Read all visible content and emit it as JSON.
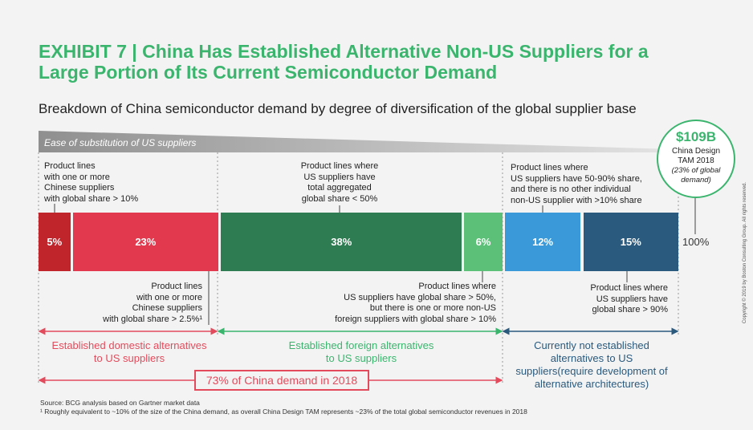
{
  "header": {
    "title": "EXHIBIT 7 | China Has Established Alternative Non-US Suppliers for a Large Portion of Its Current Semiconductor Demand",
    "subtitle": "Breakdown of China semiconductor demand by degree of diversification of the global supplier base",
    "ease_label": "Ease of substitution of US suppliers"
  },
  "chart_data": {
    "type": "bar",
    "orientation": "horizontal-stacked",
    "unit": "%",
    "total_label": "100%",
    "segments": [
      {
        "value": 5,
        "label": "5%",
        "color": "#c0252c"
      },
      {
        "value": 23,
        "label": "23%",
        "color": "#e3394f"
      },
      {
        "value": 38,
        "label": "38%",
        "color": "#2e7d52"
      },
      {
        "value": 6,
        "label": "6%",
        "color": "#5cc079"
      },
      {
        "value": 12,
        "label": "12%",
        "color": "#3a9ad9"
      },
      {
        "value": 15,
        "label": "15%",
        "color": "#2a5a7e"
      }
    ],
    "groups": [
      {
        "label": "Established domestic alternatives\nto US suppliers",
        "color": "#e34b5c",
        "share": 28
      },
      {
        "label": "Established foreign alternatives\nto US suppliers",
        "color": "#3bb56e",
        "share": 44
      },
      {
        "label": "Currently not established\nalternatives to US\nsuppliers(require development of\nalternative architectures)",
        "color": "#2a5a7e",
        "share": 28
      }
    ],
    "summary": "73% of China demand in 2018"
  },
  "annotations": {
    "top_chinese": "Product lines\nwith one or more\nChinese suppliers\nwith global share > 10%",
    "top_us": "Product lines where\nUS suppliers have\ntotal aggregated\nglobal share < 50%",
    "top_nonus": "Product lines where\nUS suppliers have 50-90% share,\nand there is no other individual\nnon-US supplier with >10% share",
    "bottom_chinese": "Product lines\nwith one or more\nChinese suppliers\nwith global share > 2.5%¹",
    "bottom_foreign": "Product lines where\nUS suppliers have global share > 50%,\nbut there is one or more non-US\nforeign suppliers with global share > 10%",
    "bottom_us90": "Product lines where\nUS suppliers have\nglobal share > 90%"
  },
  "badge": {
    "amount": "$109B",
    "name": "China Design\nTAM 2018",
    "note": "(23% of global\ndemand)"
  },
  "footer": {
    "source": "Source: BCG analysis based on Gartner market data\n¹ Roughly equivalent to ~10% of the size of the China demand, as overall China Design TAM represents ~23% of the total global semiconductor revenues in 2018",
    "copyright": "Copyright © 2019 by Boston Consulting Group. All rights reserved."
  },
  "colors": {
    "accent_green": "#3bb56e",
    "domestic_red": "#e34b5c",
    "not_established_blue": "#2a5a7e"
  }
}
